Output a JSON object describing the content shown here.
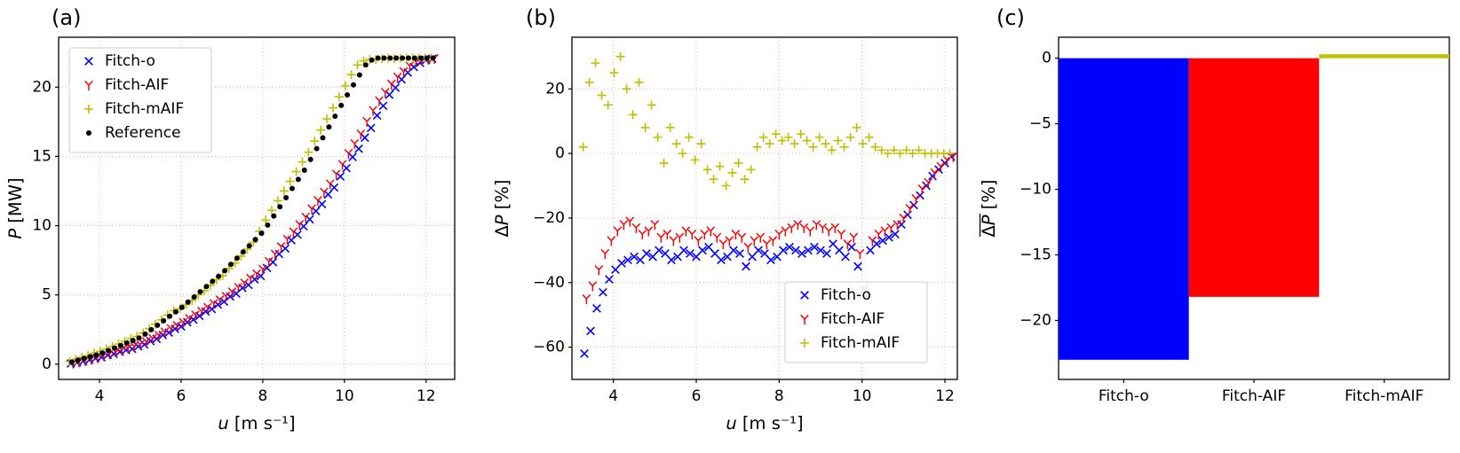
{
  "figure": {
    "background": "#ffffff"
  },
  "chart_data": [
    {
      "id": "a",
      "type": "scatter",
      "panel_label": "(a)",
      "xlabel_parts": [
        {
          "t": "u",
          "i": 1
        },
        {
          "t": " [m s⁻¹]",
          "i": 0
        }
      ],
      "ylabel_parts": [
        {
          "t": "P",
          "i": 1
        },
        {
          "t": " [MW]",
          "i": 0
        }
      ],
      "ylabel_overline": false,
      "xlim": [
        3.0,
        12.7
      ],
      "ylim": [
        -1.1,
        23.6
      ],
      "xticks": [
        4,
        6,
        8,
        10,
        12
      ],
      "yticks": [
        0,
        5,
        10,
        15,
        20
      ],
      "grid": true,
      "legend": {
        "show": true,
        "position": "upper-left"
      },
      "series": [
        {
          "name": "Fitch-o",
          "marker": "x",
          "color": "#0000ff",
          "x": [
            3.3,
            3.45,
            3.6,
            3.75,
            3.9,
            4.05,
            4.2,
            4.35,
            4.5,
            4.65,
            4.8,
            4.95,
            5.1,
            5.25,
            5.4,
            5.55,
            5.7,
            5.85,
            6,
            6.15,
            6.3,
            6.45,
            6.6,
            6.75,
            6.9,
            7.05,
            7.2,
            7.35,
            7.5,
            7.65,
            7.8,
            7.95,
            8.1,
            8.25,
            8.4,
            8.55,
            8.7,
            8.85,
            9,
            9.15,
            9.3,
            9.45,
            9.6,
            9.75,
            9.9,
            10.05,
            10.2,
            10.35,
            10.5,
            10.65,
            10.8,
            10.95,
            11.1,
            11.25,
            11.4,
            11.55,
            11.7,
            11.85,
            12,
            12.15
          ],
          "y": [
            0.05,
            0.12,
            0.21,
            0.31,
            0.42,
            0.5,
            0.66,
            0.74,
            0.9,
            1.02,
            1.1,
            1.28,
            1.42,
            1.67,
            1.83,
            2.1,
            2.28,
            2.55,
            2.72,
            3.03,
            3.22,
            3.48,
            3.8,
            3.98,
            4.3,
            4.52,
            4.88,
            5.1,
            5.5,
            5.72,
            6.12,
            6.36,
            6.95,
            7.36,
            7.95,
            8.35,
            8.95,
            9.35,
            9.95,
            10.45,
            11.05,
            11.55,
            12.25,
            12.75,
            13.55,
            14.15,
            14.95,
            15.55,
            16.35,
            17.05,
            17.95,
            18.65,
            19.45,
            19.95,
            20.55,
            21.05,
            21.45,
            21.75,
            21.95,
            22.05
          ]
        },
        {
          "name": "Fitch-AIF",
          "marker": "tri",
          "color": "#ff0000",
          "x": [
            3.35,
            3.5,
            3.65,
            3.8,
            3.95,
            4.1,
            4.25,
            4.4,
            4.55,
            4.7,
            4.85,
            5,
            5.15,
            5.3,
            5.45,
            5.6,
            5.75,
            5.9,
            6.05,
            6.2,
            6.35,
            6.5,
            6.65,
            6.8,
            6.95,
            7.1,
            7.25,
            7.4,
            7.55,
            7.7,
            7.85,
            8,
            8.15,
            8.3,
            8.45,
            8.6,
            8.75,
            8.9,
            9.05,
            9.2,
            9.35,
            9.5,
            9.65,
            9.8,
            9.95,
            10.1,
            10.25,
            10.4,
            10.55,
            10.7,
            10.85,
            11,
            11.15,
            11.3,
            11.45,
            11.6,
            11.75,
            11.9,
            12.05,
            12.2
          ],
          "y": [
            0.08,
            0.17,
            0.27,
            0.37,
            0.48,
            0.62,
            0.75,
            0.88,
            1.02,
            1.16,
            1.29,
            1.43,
            1.62,
            1.86,
            2.09,
            2.33,
            2.57,
            2.8,
            3.02,
            3.3,
            3.56,
            3.83,
            4.1,
            4.37,
            4.64,
            4.9,
            5.22,
            5.55,
            5.87,
            6.2,
            6.52,
            6.85,
            7.42,
            7.95,
            8.48,
            9.02,
            9.55,
            10.08,
            10.62,
            11.22,
            11.82,
            12.42,
            13.02,
            13.72,
            14.42,
            15.22,
            15.92,
            16.62,
            17.52,
            18.32,
            19.02,
            19.62,
            20.22,
            20.72,
            21.12,
            21.52,
            21.82,
            21.97,
            22.02,
            22.07
          ]
        },
        {
          "name": "Fitch-mAIF",
          "marker": "plus",
          "color": "#bfbf00",
          "x": [
            3.27,
            3.42,
            3.57,
            3.72,
            3.87,
            4.02,
            4.17,
            4.32,
            4.47,
            4.62,
            4.77,
            4.92,
            5.07,
            5.22,
            5.37,
            5.52,
            5.67,
            5.82,
            5.97,
            6.12,
            6.27,
            6.42,
            6.57,
            6.72,
            6.87,
            7.02,
            7.17,
            7.32,
            7.47,
            7.62,
            7.77,
            7.92,
            8.07,
            8.22,
            8.37,
            8.52,
            8.67,
            8.82,
            8.97,
            9.12,
            9.27,
            9.42,
            9.57,
            9.72,
            9.87,
            10.02,
            10.17,
            10.32,
            10.47,
            10.62,
            10.77,
            10.92,
            11.07,
            11.22,
            11.37,
            11.52,
            11.67,
            11.82,
            11.97,
            12.12
          ],
          "y": [
            0.19,
            0.33,
            0.5,
            0.62,
            0.8,
            0.92,
            1.09,
            1.27,
            1.46,
            1.65,
            1.84,
            2,
            2.25,
            2.57,
            2.88,
            3.2,
            3.55,
            3.86,
            4,
            4.3,
            4.6,
            5,
            5.3,
            5.7,
            6.1,
            6.4,
            6.9,
            7.3,
            7.8,
            8.3,
            8.8,
            9.6,
            10.4,
            11.1,
            11.8,
            12.5,
            13.2,
            13.9,
            14.6,
            15.3,
            16.1,
            16.9,
            17.7,
            18.5,
            19.3,
            20.1,
            20.9,
            21.6,
            21.9,
            22,
            22,
            22.05,
            22.1,
            22.05,
            22.1,
            22.1,
            22.1,
            22.1,
            22.1,
            22.1
          ]
        },
        {
          "name": "Reference",
          "marker": "dot",
          "color": "#000000",
          "x": [
            3.32,
            3.47,
            3.62,
            3.77,
            3.92,
            4.07,
            4.22,
            4.37,
            4.52,
            4.67,
            4.82,
            4.97,
            5.12,
            5.27,
            5.42,
            5.57,
            5.72,
            5.87,
            6.02,
            6.17,
            6.32,
            6.47,
            6.62,
            6.77,
            6.92,
            7.07,
            7.22,
            7.37,
            7.52,
            7.67,
            7.82,
            7.97,
            8.12,
            8.27,
            8.42,
            8.57,
            8.72,
            8.87,
            9.02,
            9.17,
            9.32,
            9.47,
            9.62,
            9.77,
            9.92,
            10.07,
            10.22,
            10.37,
            10.52,
            10.67,
            10.82,
            10.97,
            11.12,
            11.27,
            11.42,
            11.57,
            11.72,
            11.87,
            12.02,
            12.17
          ],
          "y": [
            0.15,
            0.28,
            0.41,
            0.54,
            0.66,
            0.81,
            0.99,
            1.17,
            1.35,
            1.53,
            1.71,
            1.89,
            2.17,
            2.49,
            2.81,
            3.13,
            3.46,
            3.78,
            4.1,
            4.48,
            4.85,
            5.23,
            5.6,
            5.98,
            6.35,
            6.75,
            7.2,
            7.65,
            8.1,
            8.55,
            9,
            9.45,
            10.04,
            10.7,
            11.36,
            12.02,
            12.68,
            13.34,
            14,
            14.78,
            15.56,
            16.34,
            17.12,
            17.9,
            18.68,
            19.44,
            20.16,
            20.88,
            21.6,
            21.95,
            22.1,
            22.1,
            22.1,
            22.1,
            22.1,
            22.1,
            22.1,
            22.1,
            22.1,
            22.1
          ]
        }
      ]
    },
    {
      "id": "b",
      "type": "scatter",
      "panel_label": "(b)",
      "xlabel_parts": [
        {
          "t": "u",
          "i": 1
        },
        {
          "t": " [m s⁻¹]",
          "i": 0
        }
      ],
      "ylabel_parts": [
        {
          "t": "Δ",
          "i": 0
        },
        {
          "t": "P",
          "i": 1
        },
        {
          "t": " [%]",
          "i": 0
        }
      ],
      "ylabel_overline": false,
      "xlim": [
        3.0,
        12.3
      ],
      "ylim": [
        -70,
        36
      ],
      "xticks": [
        4,
        6,
        8,
        10,
        12
      ],
      "yticks": [
        -60,
        -40,
        -20,
        0,
        20
      ],
      "grid": true,
      "legend": {
        "show": true,
        "position": "lower-right"
      },
      "series": [
        {
          "name": "Fitch-o",
          "marker": "x",
          "color": "#0000ff",
          "x": [
            3.3,
            3.45,
            3.6,
            3.75,
            3.9,
            4.05,
            4.2,
            4.35,
            4.5,
            4.65,
            4.8,
            4.95,
            5.1,
            5.25,
            5.4,
            5.55,
            5.7,
            5.85,
            6,
            6.15,
            6.3,
            6.45,
            6.6,
            6.75,
            6.9,
            7.05,
            7.2,
            7.35,
            7.5,
            7.65,
            7.8,
            7.95,
            8.1,
            8.25,
            8.4,
            8.55,
            8.7,
            8.85,
            9,
            9.15,
            9.3,
            9.45,
            9.6,
            9.75,
            9.9,
            10.05,
            10.2,
            10.35,
            10.5,
            10.65,
            10.8,
            10.95,
            11.1,
            11.25,
            11.4,
            11.55,
            11.7,
            11.85,
            12,
            12.15
          ],
          "y": [
            -62,
            -55,
            -48,
            -43,
            -39,
            -36,
            -34,
            -33,
            -32,
            -33,
            -31,
            -32,
            -30,
            -31,
            -33,
            -32,
            -30,
            -31,
            -32,
            -30,
            -29,
            -31,
            -33,
            -32,
            -30,
            -31,
            -35,
            -32,
            -30,
            -31,
            -33,
            -32,
            -30,
            -29,
            -30,
            -31,
            -30,
            -29,
            -30,
            -31,
            -28,
            -30,
            -32,
            -29,
            -35,
            -42,
            -30,
            -28,
            -27,
            -26,
            -25,
            -22,
            -19,
            -16,
            -13,
            -10,
            -7,
            -5,
            -3,
            -1
          ]
        },
        {
          "name": "Fitch-AIF",
          "marker": "tri",
          "color": "#ff0000",
          "x": [
            3.35,
            3.5,
            3.65,
            3.8,
            3.95,
            4.1,
            4.25,
            4.4,
            4.55,
            4.7,
            4.85,
            5,
            5.15,
            5.3,
            5.45,
            5.6,
            5.75,
            5.9,
            6.05,
            6.2,
            6.35,
            6.5,
            6.65,
            6.8,
            6.95,
            7.1,
            7.25,
            7.4,
            7.55,
            7.7,
            7.85,
            8,
            8.15,
            8.3,
            8.45,
            8.6,
            8.75,
            8.9,
            9.05,
            9.2,
            9.35,
            9.5,
            9.65,
            9.8,
            9.95,
            10.1,
            10.25,
            10.4,
            10.55,
            10.7,
            10.85,
            11,
            11.15,
            11.3,
            11.45,
            11.6,
            11.75,
            11.9,
            12.05,
            12.2
          ],
          "y": [
            -45,
            -41,
            -36,
            -31,
            -27,
            -24,
            -22,
            -21,
            -23,
            -25,
            -24,
            -22,
            -26,
            -25,
            -27,
            -26,
            -24,
            -25,
            -27,
            -25,
            -24,
            -26,
            -28,
            -27,
            -25,
            -26,
            -29,
            -27,
            -26,
            -28,
            -27,
            -25,
            -24,
            -23,
            -22,
            -23,
            -24,
            -22,
            -23,
            -24,
            -23,
            -25,
            -28,
            -26,
            -31,
            -43,
            -27,
            -25,
            -24,
            -23,
            -22,
            -20,
            -17,
            -14,
            -11,
            -9,
            -6,
            -4,
            -2,
            -1
          ]
        },
        {
          "name": "Fitch-mAIF",
          "marker": "plus",
          "color": "#bfbf00",
          "x": [
            3.27,
            3.42,
            3.57,
            3.72,
            3.87,
            4.02,
            4.17,
            4.32,
            4.47,
            4.62,
            4.77,
            4.92,
            5.07,
            5.22,
            5.37,
            5.52,
            5.67,
            5.82,
            5.97,
            6.12,
            6.27,
            6.42,
            6.57,
            6.72,
            6.87,
            7.02,
            7.17,
            7.32,
            7.47,
            7.62,
            7.77,
            7.92,
            8.07,
            8.22,
            8.37,
            8.52,
            8.67,
            8.82,
            8.97,
            9.12,
            9.27,
            9.42,
            9.57,
            9.72,
            9.87,
            10.02,
            10.17,
            10.32,
            10.47,
            10.62,
            10.77,
            10.92,
            11.07,
            11.22,
            11.37,
            11.52,
            11.67,
            11.82,
            11.97,
            12.12
          ],
          "y": [
            2,
            22,
            28,
            18,
            15,
            25,
            30,
            20,
            12,
            22,
            8,
            15,
            5,
            -3,
            8,
            3,
            0,
            5,
            -2,
            3,
            -5,
            -8,
            -4,
            -10,
            -6,
            -3,
            -8,
            -5,
            2,
            5,
            3,
            6,
            4,
            5,
            3,
            6,
            4,
            2,
            5,
            3,
            1,
            4,
            2,
            5,
            8,
            3,
            5,
            2,
            1,
            0,
            1,
            0,
            1,
            0,
            1,
            0,
            0,
            0,
            0,
            0
          ]
        }
      ]
    },
    {
      "id": "c",
      "type": "bar",
      "panel_label": "(c)",
      "ylabel_parts": [
        {
          "t": "Δ",
          "i": 0
        },
        {
          "t": "P",
          "i": 1
        },
        {
          "t": " [%]",
          "i": 0
        }
      ],
      "ylabel_overline": true,
      "categories": [
        "Fitch-o",
        "Fitch-AIF",
        "Fitch-mAIF"
      ],
      "values": [
        -23.0,
        -18.2,
        0.3
      ],
      "colors": [
        "#0000ff",
        "#ff0000",
        "#bfbf00"
      ],
      "ylim": [
        -24.5,
        1.6
      ],
      "yticks": [
        0,
        -5,
        -10,
        -15,
        -20
      ],
      "grid": false
    }
  ]
}
